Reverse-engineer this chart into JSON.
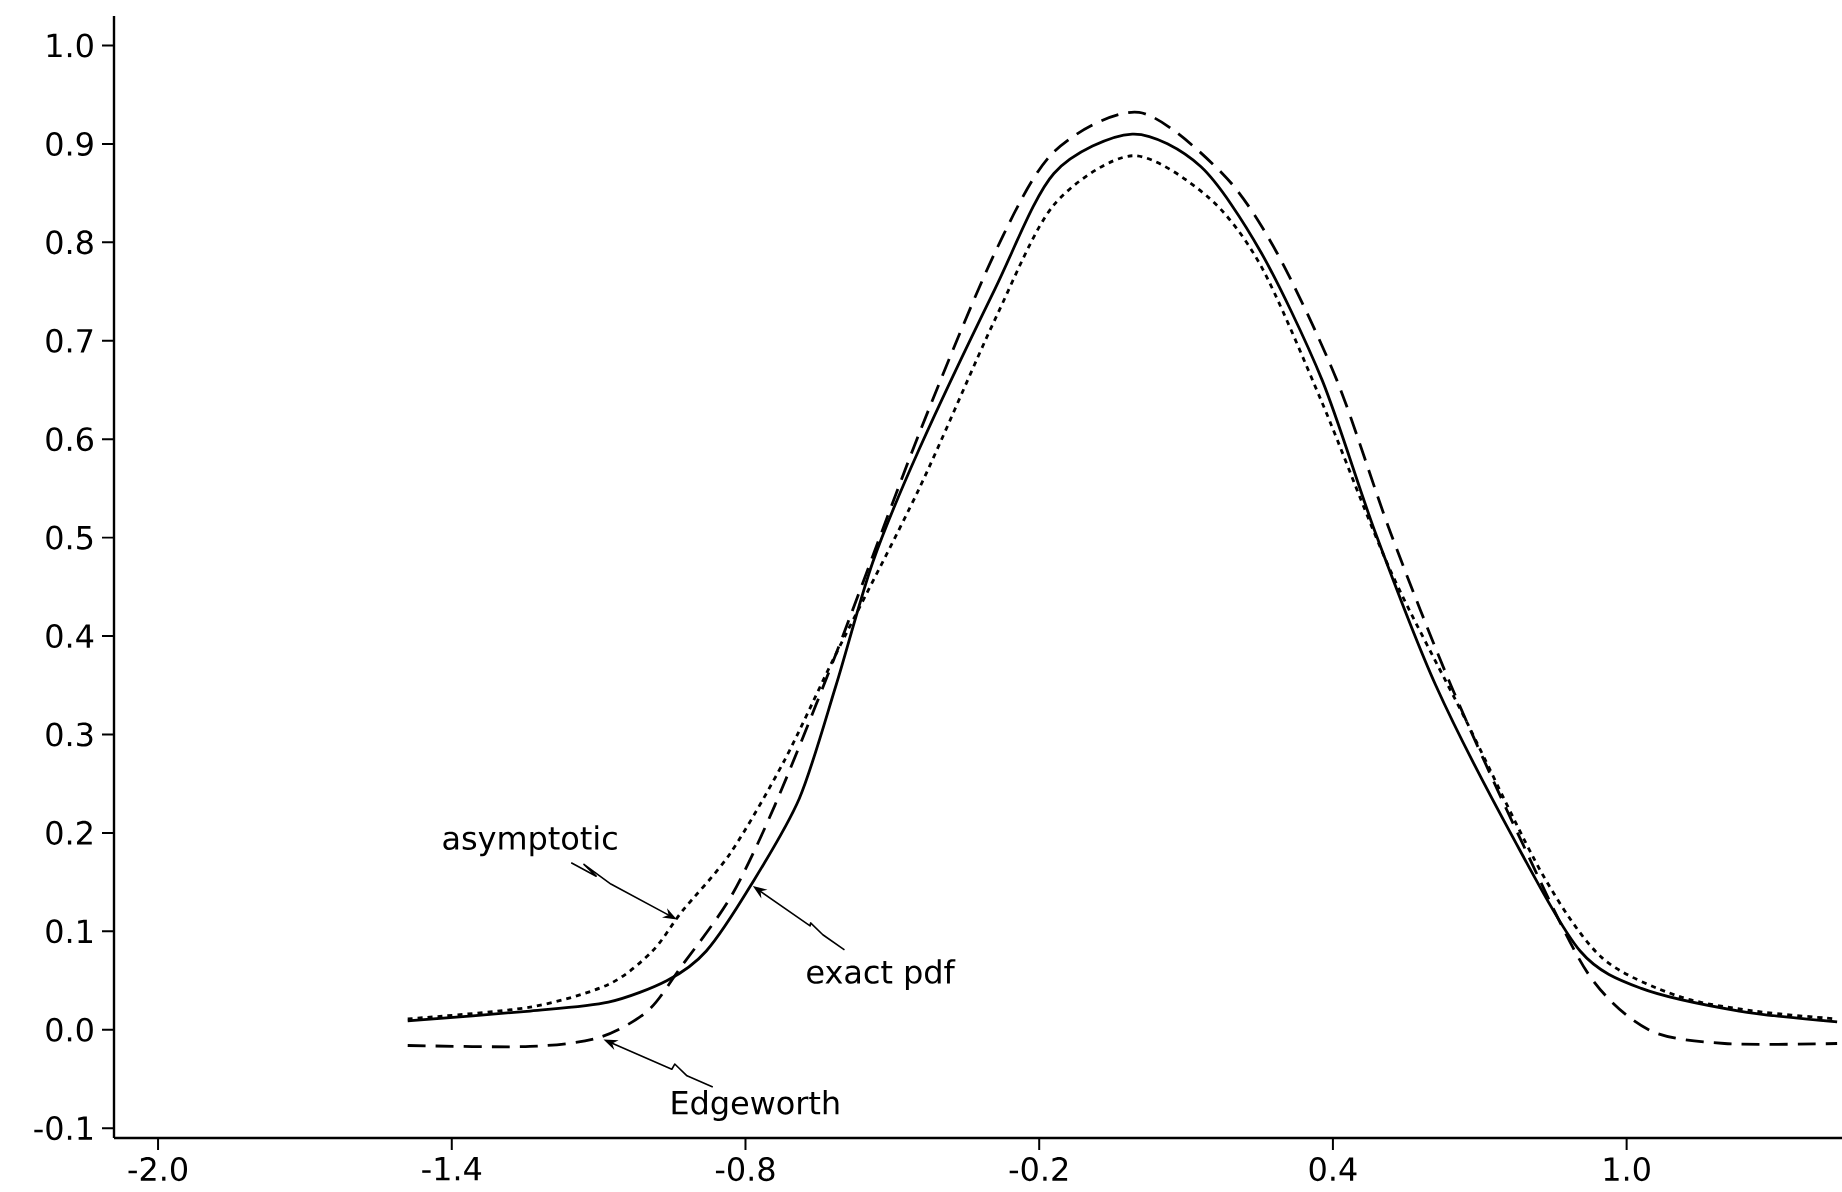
{
  "chart_data": {
    "type": "line",
    "xlim": [
      -2.09,
      1.44
    ],
    "ylim": [
      -0.11,
      1.03
    ],
    "xticks": [
      {
        "value": -2.0,
        "label": "-2.0"
      },
      {
        "value": -1.4,
        "label": "-1.4"
      },
      {
        "value": -0.8,
        "label": "-0.8"
      },
      {
        "value": -0.2,
        "label": "-0.2"
      },
      {
        "value": 0.4,
        "label": "0.4"
      },
      {
        "value": 1.0,
        "label": "1.0"
      }
    ],
    "yticks": [
      {
        "value": -0.1,
        "label": "-0.1"
      },
      {
        "value": 0.0,
        "label": "0.0"
      },
      {
        "value": 0.1,
        "label": "0.1"
      },
      {
        "value": 0.2,
        "label": "0.2"
      },
      {
        "value": 0.3,
        "label": "0.3"
      },
      {
        "value": 0.4,
        "label": "0.4"
      },
      {
        "value": 0.5,
        "label": "0.5"
      },
      {
        "value": 0.6,
        "label": "0.6"
      },
      {
        "value": 0.7,
        "label": "0.7"
      },
      {
        "value": 0.8,
        "label": "0.8"
      },
      {
        "value": 0.9,
        "label": "0.9"
      },
      {
        "value": 1.0,
        "label": "1.0"
      }
    ],
    "marker": "none",
    "series": [
      {
        "color": "#000000",
        "line_style": "solid",
        "x": [
          -1.49,
          -1.24,
          -1.08,
          -0.96,
          -0.88,
          -0.79,
          -0.69,
          -0.615,
          -0.54,
          -0.445,
          -0.29,
          -0.17,
          -0.01,
          0.13,
          0.253,
          0.378,
          0.486,
          0.61,
          0.766,
          0.905,
          1.03,
          1.23,
          1.43
        ],
        "values": [
          0.009,
          0.019,
          0.028,
          0.05,
          0.08,
          0.146,
          0.235,
          0.35,
          0.475,
          0.59,
          0.753,
          0.87,
          0.91,
          0.877,
          0.79,
          0.66,
          0.506,
          0.35,
          0.197,
          0.08,
          0.042,
          0.019,
          0.008
        ]
      },
      {
        "color": "#000000",
        "line_style": "dashed",
        "x": [
          -1.49,
          -1.24,
          -1.1,
          -1.0,
          -0.93,
          -0.83,
          -0.74,
          -0.615,
          -0.445,
          -0.29,
          -0.17,
          0.004,
          0.176,
          0.285,
          0.408,
          0.517,
          0.641,
          0.78,
          0.92,
          1.045,
          1.2,
          1.43
        ],
        "values": [
          -0.016,
          -0.017,
          -0.008,
          0.019,
          0.065,
          0.135,
          0.228,
          0.382,
          0.606,
          0.79,
          0.892,
          0.932,
          0.869,
          0.79,
          0.66,
          0.506,
          0.35,
          0.197,
          0.058,
          0.0,
          -0.014,
          -0.014
        ]
      },
      {
        "color": "#000000",
        "line_style": "dotted",
        "x": [
          -1.49,
          -1.24,
          -1.08,
          -0.99,
          -0.93,
          -0.83,
          -0.72,
          -0.615,
          -0.445,
          -0.29,
          -0.17,
          -0.01,
          0.145,
          0.253,
          0.378,
          0.517,
          0.673,
          0.828,
          0.95,
          1.106,
          1.26,
          1.43
        ],
        "values": [
          0.011,
          0.023,
          0.046,
          0.08,
          0.12,
          0.18,
          0.274,
          0.382,
          0.55,
          0.722,
          0.838,
          0.888,
          0.846,
          0.776,
          0.637,
          0.467,
          0.313,
          0.158,
          0.073,
          0.034,
          0.019,
          0.011
        ]
      }
    ],
    "annotations": [
      {
        "text": "asymptotic",
        "x": -0.94,
        "y": 0.112
      },
      {
        "text": "exact pdf",
        "x": -0.785,
        "y": 0.146
      },
      {
        "text": "Edgeworth",
        "x": -1.09,
        "y": -0.01
      }
    ]
  }
}
